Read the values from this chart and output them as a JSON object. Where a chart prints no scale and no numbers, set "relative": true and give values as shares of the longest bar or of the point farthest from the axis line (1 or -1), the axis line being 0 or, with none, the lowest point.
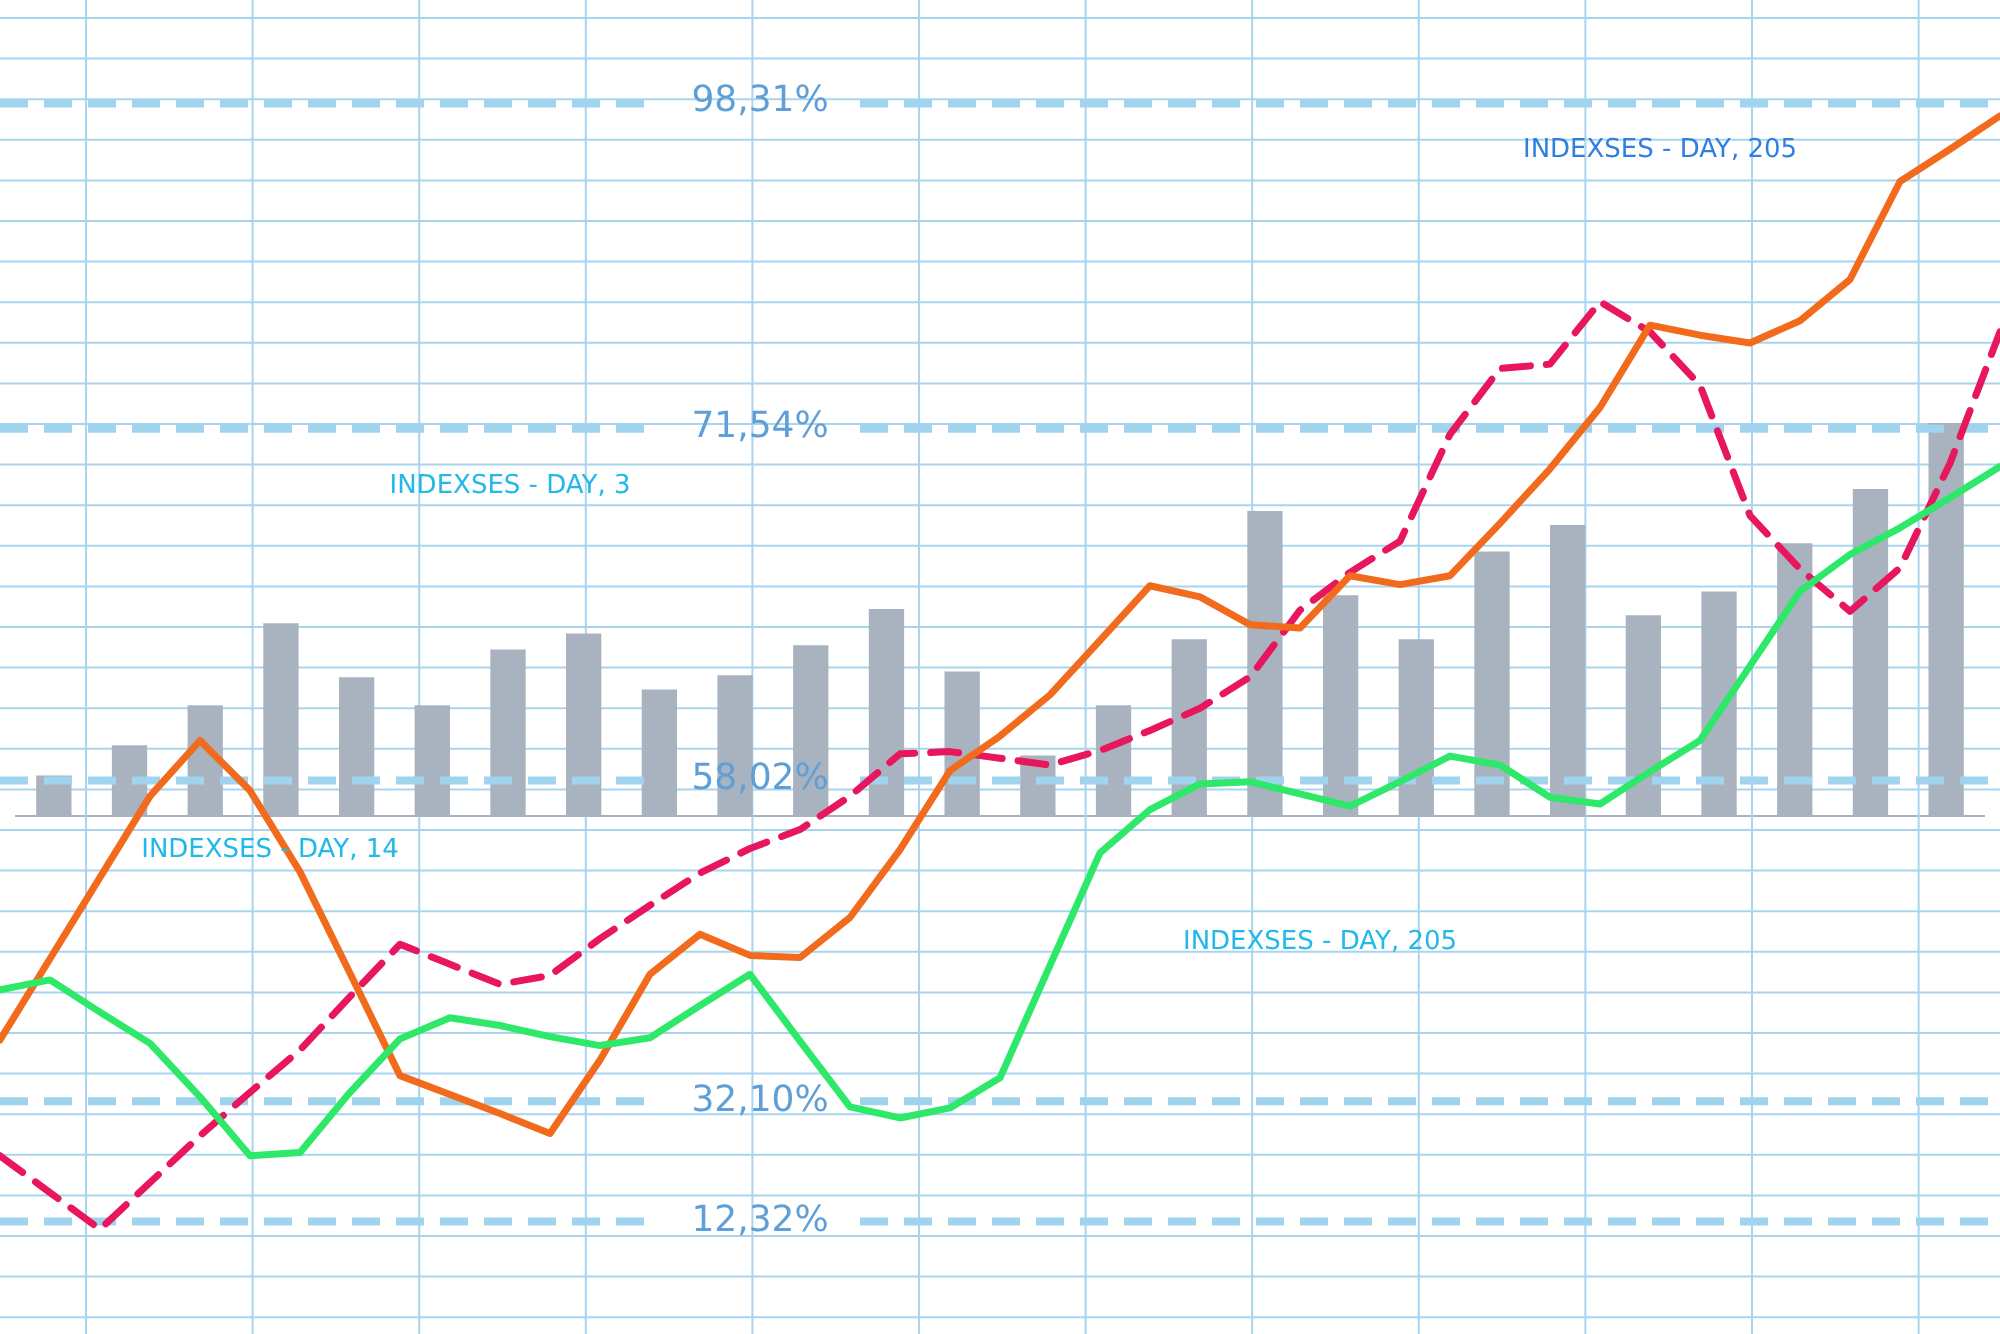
{
  "chart_data": [
    {
      "type": "bar",
      "relative": true,
      "grid": true,
      "legend": false,
      "color": "#a9b3bf",
      "categories": [
        null,
        null,
        null,
        null,
        null,
        null,
        null,
        null,
        null,
        null,
        null,
        null,
        null,
        null,
        null,
        null,
        null,
        null,
        null,
        null,
        null,
        null,
        null,
        null,
        null,
        null
      ],
      "values": [
        0.102,
        0.179,
        0.281,
        0.49,
        0.352,
        0.281,
        0.423,
        0.464,
        0.321,
        0.357,
        0.434,
        0.526,
        0.367,
        0.153,
        0.281,
        0.449,
        0.776,
        0.561,
        0.449,
        0.673,
        0.74,
        0.51,
        0.571,
        0.694,
        0.832,
        1
      ]
    },
    {
      "type": "line",
      "relative": true,
      "legend": false,
      "marker": "none",
      "categories": [
        null,
        null,
        null,
        null,
        null,
        null,
        null,
        null,
        null,
        null,
        null,
        null,
        null,
        null,
        null,
        null,
        null,
        null,
        null,
        null,
        null,
        null,
        null,
        null,
        null,
        null,
        null,
        null,
        null,
        null,
        null,
        null,
        null,
        null,
        null,
        null,
        null,
        null,
        null,
        null,
        null
      ],
      "annotations": [
        "INDEXSES - DAY, 205",
        "INDEXSES - DAY, 3",
        "INDEXSES - DAY, 14",
        "INDEXSES - DAY, 205",
        "98,31%",
        "71,54%",
        "58,02%",
        "32,10%",
        "12,32%"
      ],
      "ref_lines": [
        {
          "axis": "y",
          "value": 1.011,
          "color": "#9fd3ee",
          "line_style": "dashed"
        },
        {
          "axis": "y",
          "value": 0.719,
          "color": "#9fd3ee",
          "line_style": "dashed"
        },
        {
          "axis": "y",
          "value": 0.403,
          "color": "#9fd3ee",
          "line_style": "dashed"
        },
        {
          "axis": "y",
          "value": 0.115,
          "color": "#9fd3ee",
          "line_style": "dashed"
        },
        {
          "axis": "y",
          "value": 0.007,
          "color": "#9fd3ee",
          "line_style": "dashed"
        }
      ],
      "series": [
        {
          "color": "#2ee86a",
          "line_style": "solid",
          "values": [
            0.215,
            0.224,
            0.195,
            0.167,
            0.119,
            0.066,
            0.069,
            0.123,
            0.171,
            0.19,
            0.183,
            0.173,
            0.165,
            0.172,
            0.201,
            0.229,
            0.169,
            0.11,
            0.1,
            0.109,
            0.136,
            0.237,
            0.338,
            0.377,
            0.4,
            0.402,
            0.391,
            0.38,
            0.402,
            0.425,
            0.417,
            0.388,
            0.382,
            0.411,
            0.439,
            0.506,
            0.573,
            0.606,
            0.63,
            0.657,
            0.685
          ]
        },
        {
          "color": "#f26a1b",
          "line_style": "solid",
          "values": [
            0.17,
            0.243,
            0.316,
            0.389,
            0.439,
            0.394,
            0.321,
            0.23,
            0.138,
            0.121,
            0.104,
            0.086,
            0.152,
            0.229,
            0.265,
            0.246,
            0.244,
            0.28,
            0.341,
            0.412,
            0.443,
            0.48,
            0.529,
            0.578,
            0.568,
            0.543,
            0.54,
            0.587,
            0.579,
            0.587,
            0.634,
            0.683,
            0.738,
            0.812,
            0.803,
            0.796,
            0.816,
            0.853,
            0.941,
            0.97,
            1
          ]
        },
        {
          "color": "#e8175d",
          "line_style": "dashed",
          "values": [
            0.066,
            0.033,
            0,
            0.042,
            0.084,
            0.123,
            0.161,
            0.209,
            0.256,
            0.238,
            0.22,
            0.228,
            0.261,
            0.291,
            0.32,
            0.342,
            0.359,
            0.389,
            0.427,
            0.429,
            0.423,
            0.417,
            0.43,
            0.448,
            0.468,
            0.496,
            0.556,
            0.59,
            0.618,
            0.714,
            0.773,
            0.777,
            0.833,
            0.806,
            0.758,
            0.641,
            0.593,
            0.555,
            0.594,
            0.688,
            0.806
          ]
        }
      ]
    }
  ]
}
